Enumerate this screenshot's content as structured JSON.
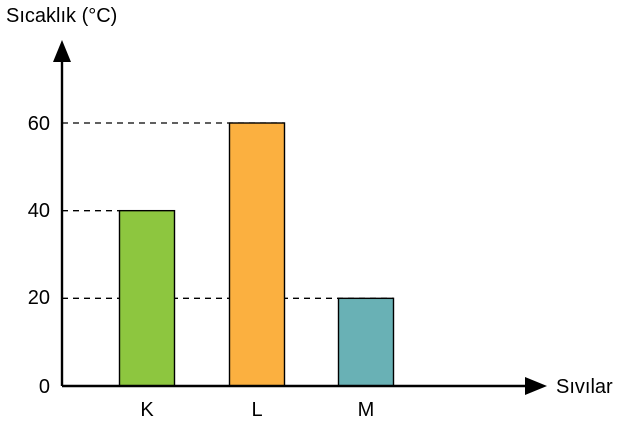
{
  "chart_data": {
    "type": "bar",
    "categories": [
      "K",
      "L",
      "M"
    ],
    "values": [
      40,
      60,
      20
    ],
    "ylabel": "Sıcaklık (°C)",
    "xlabel": "Sıvılar",
    "yticks": [
      "0",
      "20",
      "40",
      "60"
    ],
    "ylim": [
      0,
      60
    ],
    "grid": "dashed guide lines at bar tops",
    "bar_colors": [
      "#8dc63f",
      "#fbb040",
      "#69b1b5"
    ]
  }
}
